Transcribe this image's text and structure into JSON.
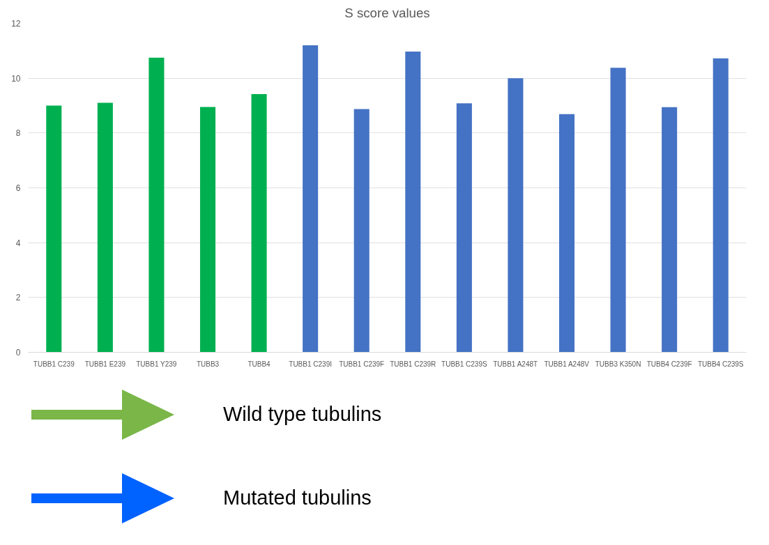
{
  "chart_data": {
    "type": "bar",
    "title": "S score values",
    "categories": [
      "TUBB1 C239",
      "TUBB1 E239",
      "TUBB1 Y239",
      "TUBB3",
      "TUBB4",
      "TUBB1 C239I",
      "TUBB1 C239F",
      "TUBB1 C239R",
      "TUBB1 C239S",
      "TUBB1 A248T",
      "TUBB1 A248V",
      "TUBB3 K350N",
      "TUBB4 C239F",
      "TUBB4 C239S"
    ],
    "values": [
      9.0,
      9.1,
      10.75,
      8.95,
      9.42,
      11.2,
      8.87,
      10.97,
      9.08,
      10.0,
      8.69,
      10.38,
      8.94,
      10.72
    ],
    "colors": [
      "#00b050",
      "#00b050",
      "#00b050",
      "#00b050",
      "#00b050",
      "#4472c4",
      "#4472c4",
      "#4472c4",
      "#4472c4",
      "#4472c4",
      "#4472c4",
      "#4472c4",
      "#4472c4",
      "#4472c4"
    ],
    "ylim": [
      0,
      12
    ],
    "yticks": [
      0,
      2,
      4,
      6,
      8,
      10,
      12
    ],
    "grid": "y",
    "annotations": [
      "Wild type tubulins",
      "Mutated tubulins"
    ]
  }
}
